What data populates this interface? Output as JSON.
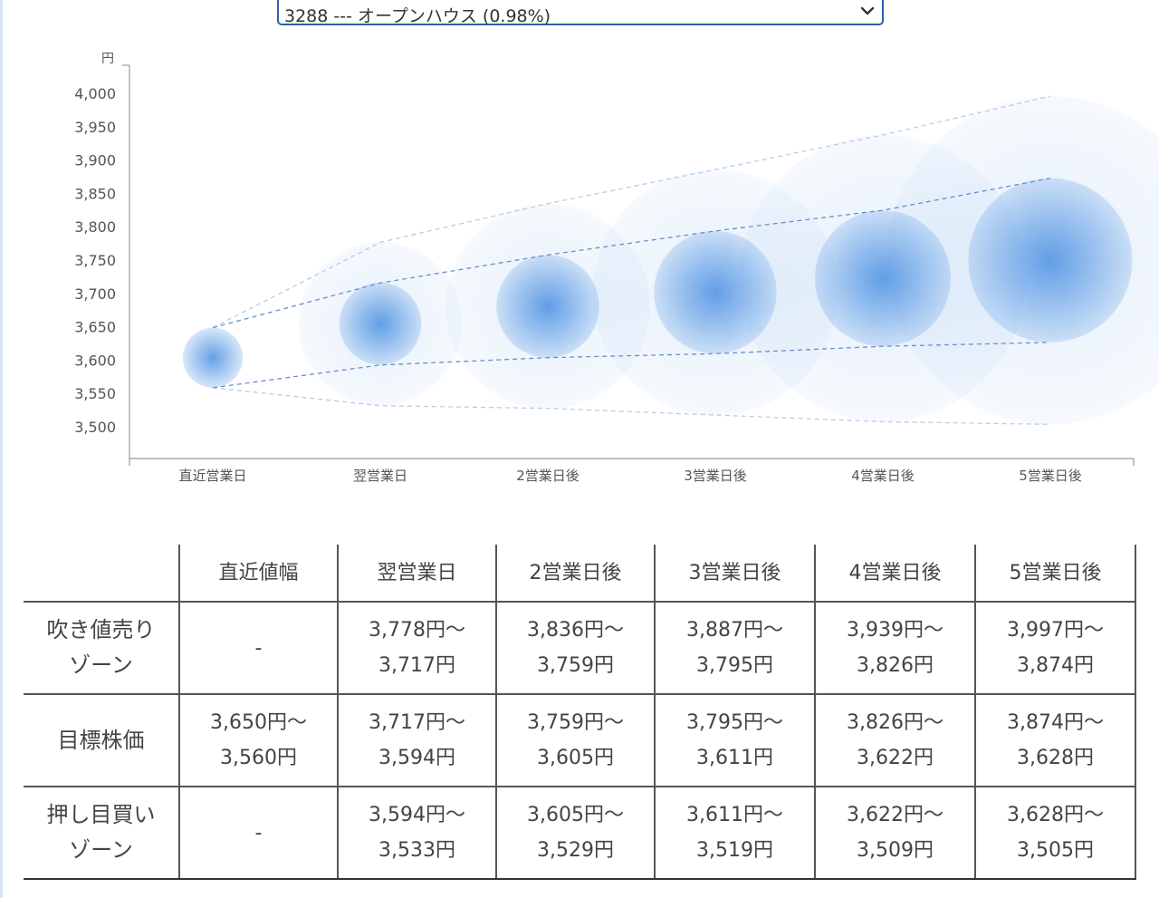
{
  "stock_selector": {
    "selected": "3288 --- オープンハウス (0.98%)"
  },
  "chart_data": {
    "type": "scatter",
    "y_unit_label": "円",
    "ylim": [
      3470,
      4030
    ],
    "y_ticks": [
      "4,000",
      "3,950",
      "3,900",
      "3,850",
      "3,800",
      "3,750",
      "3,700",
      "3,650",
      "3,600",
      "3,550",
      "3,500"
    ],
    "y_tick_values": [
      4000,
      3950,
      3900,
      3850,
      3800,
      3750,
      3700,
      3650,
      3600,
      3550,
      3500
    ],
    "categories": [
      "直近営業日",
      "翌営業日",
      "2営業日後",
      "3営業日後",
      "4営業日後",
      "5営業日後"
    ],
    "center_values": [
      3605,
      3656,
      3682,
      3703,
      3724,
      3751
    ],
    "inner_band": {
      "upper": [
        3650,
        3717,
        3759,
        3795,
        3826,
        3874
      ],
      "lower": [
        3560,
        3594,
        3605,
        3611,
        3622,
        3628
      ]
    },
    "outer_band": {
      "upper": [
        3650,
        3778,
        3836,
        3887,
        3939,
        3997
      ],
      "lower": [
        3560,
        3533,
        3529,
        3519,
        3509,
        3505
      ]
    },
    "grid": false,
    "colors": {
      "bubble": "#4a90e2",
      "band_line": "#6b8fc9",
      "outer_line": "#b8cbe6"
    }
  },
  "zone_table": {
    "headers": [
      "",
      "直近値幅",
      "翌営業日",
      "2営業日後",
      "3営業日後",
      "4営業日後",
      "5営業日後"
    ],
    "rows": [
      {
        "label_lines": [
          "吹き値売り",
          "ゾーン"
        ],
        "cells": [
          [
            "-"
          ],
          [
            "3,778円〜",
            "3,717円"
          ],
          [
            "3,836円〜",
            "3,759円"
          ],
          [
            "3,887円〜",
            "3,795円"
          ],
          [
            "3,939円〜",
            "3,826円"
          ],
          [
            "3,997円〜",
            "3,874円"
          ]
        ]
      },
      {
        "label_lines": [
          "目標株価"
        ],
        "cells": [
          [
            "3,650円〜",
            "3,560円"
          ],
          [
            "3,717円〜",
            "3,594円"
          ],
          [
            "3,759円〜",
            "3,605円"
          ],
          [
            "3,795円〜",
            "3,611円"
          ],
          [
            "3,826円〜",
            "3,622円"
          ],
          [
            "3,874円〜",
            "3,628円"
          ]
        ]
      },
      {
        "label_lines": [
          "押し目買い",
          "ゾーン"
        ],
        "cells": [
          [
            "-"
          ],
          [
            "3,594円〜",
            "3,533円"
          ],
          [
            "3,605円〜",
            "3,529円"
          ],
          [
            "3,611円〜",
            "3,519円"
          ],
          [
            "3,622円〜",
            "3,509円"
          ],
          [
            "3,628円〜",
            "3,505円"
          ]
        ]
      }
    ]
  }
}
